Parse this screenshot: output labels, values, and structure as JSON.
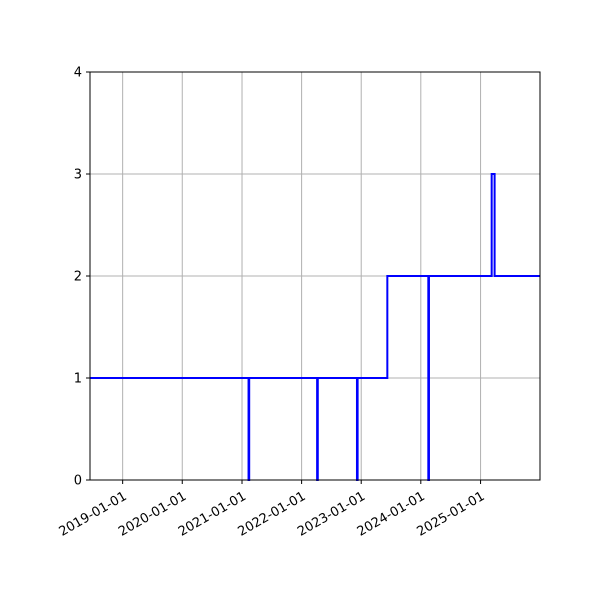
{
  "chart_data": {
    "type": "line",
    "line_style": "step",
    "title": "",
    "xlabel": "",
    "ylabel": "",
    "grid": true,
    "line_color": "#0000ff",
    "x_axis": {
      "type": "date",
      "range": [
        "2018-06-15",
        "2025-12-31"
      ],
      "ticks": [
        "2019-01-01",
        "2020-01-01",
        "2021-01-01",
        "2022-01-01",
        "2023-01-01",
        "2024-01-01",
        "2025-01-01"
      ]
    },
    "y_axis": {
      "range": [
        0,
        4
      ],
      "ticks": [
        0,
        1,
        2,
        3,
        4
      ]
    },
    "series": [
      {
        "points": [
          {
            "x": "2018-06-15",
            "y": 1
          },
          {
            "x": "2021-02-10",
            "y": 0
          },
          {
            "x": "2021-02-14",
            "y": 1
          },
          {
            "x": "2022-04-06",
            "y": 0
          },
          {
            "x": "2022-04-10",
            "y": 1
          },
          {
            "x": "2022-12-06",
            "y": 0
          },
          {
            "x": "2022-12-10",
            "y": 1
          },
          {
            "x": "2023-06-10",
            "y": 2
          },
          {
            "x": "2024-02-16",
            "y": 0
          },
          {
            "x": "2024-02-20",
            "y": 2
          },
          {
            "x": "2025-03-10",
            "y": 3
          },
          {
            "x": "2025-03-28",
            "y": 2
          },
          {
            "x": "2025-12-31",
            "y": 2
          }
        ]
      }
    ]
  }
}
